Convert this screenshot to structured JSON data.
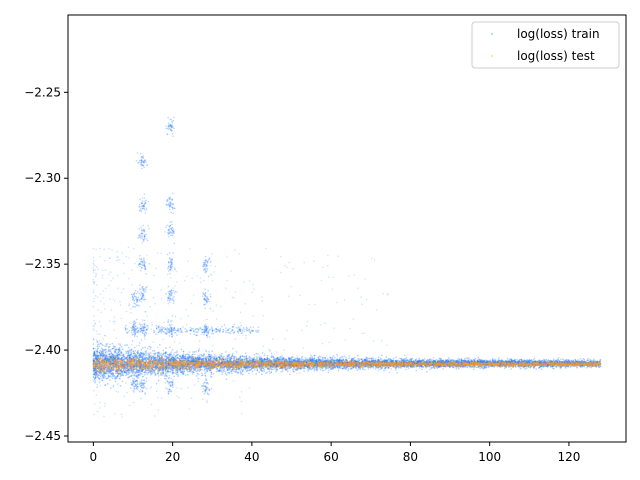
{
  "chart_data": {
    "type": "scatter",
    "title": "",
    "xlabel": "",
    "ylabel": "",
    "xlim": [
      -6.4,
      134.4
    ],
    "ylim": [
      -2.4535,
      -2.205
    ],
    "xticks": [
      0,
      20,
      40,
      60,
      80,
      100,
      120
    ],
    "xtick_labels": [
      "0",
      "20",
      "40",
      "60",
      "80",
      "100",
      "120"
    ],
    "yticks": [
      -2.45,
      -2.4,
      -2.35,
      -2.3,
      -2.25
    ],
    "ytick_labels": [
      "−2.45",
      "−2.40",
      "−2.35",
      "−2.30",
      "−2.25"
    ],
    "grid": false,
    "legend": {
      "position": "top-right",
      "entries": [
        {
          "label": "log(loss) train",
          "color": "#1f77ff"
        },
        {
          "label": "log(loss) test",
          "color": "#ff9a1f"
        }
      ]
    },
    "series": [
      {
        "name": "log(loss) train",
        "color": "#1f77ff",
        "description_points": [
          {
            "x": 0,
            "y": -2.4075
          },
          {
            "x": 5,
            "y": -2.4075
          },
          {
            "x": 10,
            "y": -2.388
          },
          {
            "x": 11.5,
            "y": -2.388
          },
          {
            "x": 12.5,
            "y": -2.368
          },
          {
            "x": 12.5,
            "y": -2.35
          },
          {
            "x": 12.5,
            "y": -2.315
          },
          {
            "x": 19.5,
            "y": -2.388
          },
          {
            "x": 19.5,
            "y": -2.368
          },
          {
            "x": 19.5,
            "y": -2.33
          },
          {
            "x": 19.5,
            "y": -2.315
          },
          {
            "x": 28.5,
            "y": -2.388
          },
          {
            "x": 28.5,
            "y": -2.37
          },
          {
            "x": 34,
            "y": -2.389
          },
          {
            "x": 40,
            "y": -2.408
          },
          {
            "x": 60,
            "y": -2.408
          },
          {
            "x": 80,
            "y": -2.408
          },
          {
            "x": 100,
            "y": -2.408
          },
          {
            "x": 128,
            "y": -2.408
          },
          {
            "x": 12.5,
            "y": -2.42
          },
          {
            "x": 19.5,
            "y": -2.42
          }
        ]
      },
      {
        "name": "log(loss) test",
        "color": "#ff9a1f",
        "description_points": [
          {
            "x": 0,
            "y": -2.408
          },
          {
            "x": 20,
            "y": -2.408
          },
          {
            "x": 40,
            "y": -2.408
          },
          {
            "x": 60,
            "y": -2.408
          },
          {
            "x": 80,
            "y": -2.408
          },
          {
            "x": 100,
            "y": -2.408
          },
          {
            "x": 128,
            "y": -2.408
          }
        ]
      }
    ]
  }
}
